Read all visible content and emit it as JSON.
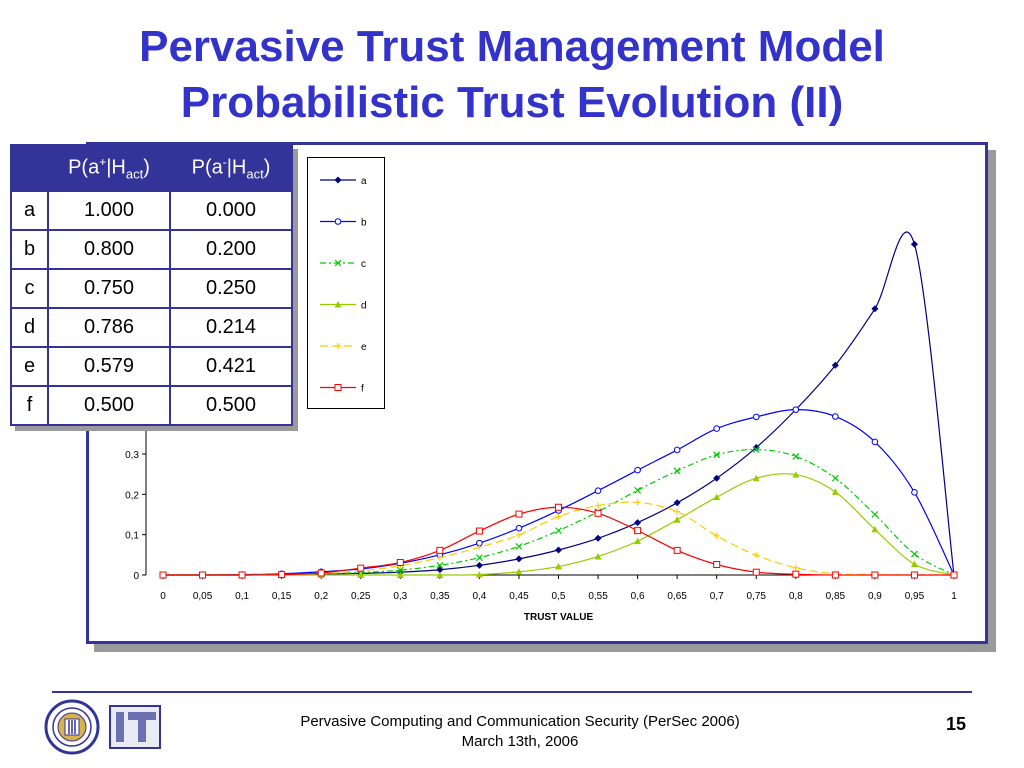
{
  "slide": {
    "title_line1": "Pervasive Trust Management Model",
    "title_line2": "Probabilistic Trust Evolution (II)",
    "page_number": "15"
  },
  "footer": {
    "line1": "Pervasive Computing and Communication Security  (PerSec 2006)",
    "line2": "March 13th, 2006"
  },
  "table": {
    "header_col1": {
      "base": "P(a",
      "sup": "+",
      "mid": "|H",
      "sub": "act",
      "end": ")"
    },
    "header_col2": {
      "base": "P(a",
      "sup": "-",
      "mid": "|H",
      "sub": "act",
      "end": ")"
    },
    "rows": [
      {
        "label": "a",
        "pos": "1.000",
        "neg": "0.000"
      },
      {
        "label": "b",
        "pos": "0.800",
        "neg": "0.200"
      },
      {
        "label": "c",
        "pos": "0.750",
        "neg": "0.250"
      },
      {
        "label": "d",
        "pos": "0.786",
        "neg": "0.214"
      },
      {
        "label": "e",
        "pos": "0.579",
        "neg": "0.421"
      },
      {
        "label": "f",
        "pos": "0.500",
        "neg": "0.500"
      }
    ]
  },
  "colors": {
    "title": "#3333cc",
    "frame": "#333399"
  },
  "chart_data": {
    "type": "line",
    "xlabel": "TRUST VALUE",
    "x": [
      0,
      0.05,
      0.1,
      0.15,
      0.2,
      0.25,
      0.3,
      0.35,
      0.4,
      0.45,
      0.5,
      0.55,
      0.6,
      0.65,
      0.7,
      0.75,
      0.8,
      0.85,
      0.9,
      0.95,
      1
    ],
    "x_tick_labels": [
      "0",
      "0,05",
      "0,1",
      "0,15",
      "0,2",
      "0,25",
      "0,3",
      "0,35",
      "0,4",
      "0,45",
      "0,5",
      "0,55",
      "0,6",
      "0,65",
      "0,7",
      "0,75",
      "0,8",
      "0,85",
      "0,9",
      "0,95",
      "1"
    ],
    "y_ticks": [
      0,
      0.1,
      0.2,
      0.3
    ],
    "y_tick_labels": [
      "0",
      "0,1",
      "0,2",
      "0,3"
    ],
    "ylim": [
      0,
      0.85
    ],
    "legend_position": "top-left",
    "series": [
      {
        "name": "a",
        "color": "#000080",
        "marker": "diamond",
        "dash": "",
        "values": [
          0,
          0,
          0,
          0.001,
          0.002,
          0.004,
          0.007,
          0.013,
          0.024,
          0.04,
          0.062,
          0.091,
          0.13,
          0.179,
          0.24,
          0.316,
          0.41,
          0.52,
          0.66,
          0.82,
          0
        ]
      },
      {
        "name": "b",
        "color": "#0000ff",
        "marker": "circle",
        "dash": "",
        "values": [
          0,
          0,
          0.001,
          0.003,
          0.008,
          0.015,
          0.029,
          0.05,
          0.079,
          0.116,
          0.16,
          0.209,
          0.26,
          0.31,
          0.363,
          0.392,
          0.41,
          0.393,
          0.33,
          0.205,
          0
        ]
      },
      {
        "name": "c",
        "color": "#00cc00",
        "marker": "x",
        "dash": "6,3,2,3",
        "values": [
          0,
          0,
          0,
          0.001,
          0.003,
          0.006,
          0.012,
          0.024,
          0.043,
          0.071,
          0.11,
          0.157,
          0.21,
          0.258,
          0.298,
          0.311,
          0.294,
          0.24,
          0.15,
          0.052,
          0
        ]
      },
      {
        "name": "d",
        "color": "#99cc00",
        "marker": "triangle",
        "dash": "",
        "values": [
          0,
          0,
          0,
          0,
          0,
          0,
          0,
          0,
          0.001,
          0.008,
          0.021,
          0.046,
          0.084,
          0.137,
          0.193,
          0.24,
          0.249,
          0.206,
          0.113,
          0.027,
          0
        ]
      },
      {
        "name": "e",
        "color": "#ffcc00",
        "marker": "plus",
        "dash": "8,4",
        "values": [
          0,
          0,
          0,
          0.001,
          0.004,
          0.01,
          0.023,
          0.043,
          0.069,
          0.099,
          0.145,
          0.172,
          0.18,
          0.157,
          0.097,
          0.049,
          0.018,
          0.003,
          0.001,
          0,
          0
        ]
      },
      {
        "name": "f",
        "color": "#ff0000",
        "marker": "square",
        "dash": "",
        "values": [
          0,
          0,
          0,
          0.001,
          0.005,
          0.017,
          0.031,
          0.061,
          0.109,
          0.151,
          0.168,
          0.153,
          0.11,
          0.061,
          0.026,
          0.007,
          0.002,
          0,
          0,
          0,
          0
        ]
      }
    ]
  }
}
